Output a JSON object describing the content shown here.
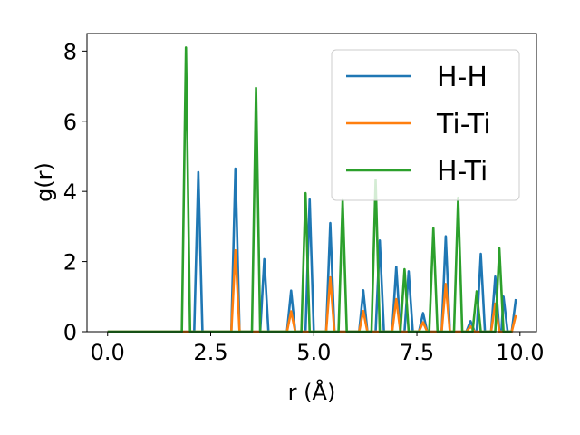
{
  "chart_data": {
    "type": "line",
    "xlabel": "r (Å)",
    "ylabel": "g(r)",
    "xlim": [
      -0.5,
      10.4
    ],
    "ylim": [
      0,
      8.5
    ],
    "xticks": [
      "0.0",
      "2.5",
      "5.0",
      "7.5",
      "10.0"
    ],
    "yticks": [
      "0",
      "2",
      "4",
      "6",
      "8"
    ],
    "grid": false,
    "legend_position": "top-right",
    "series": [
      {
        "name": "H-H",
        "color": "#1f77b4",
        "points": [
          [
            0.0,
            0
          ],
          [
            2.1,
            0
          ],
          [
            2.2,
            4.55
          ],
          [
            2.3,
            0
          ],
          [
            3.0,
            0
          ],
          [
            3.1,
            4.65
          ],
          [
            3.2,
            0
          ],
          [
            3.7,
            0
          ],
          [
            3.8,
            2.07
          ],
          [
            3.9,
            0
          ],
          [
            4.35,
            0
          ],
          [
            4.45,
            1.17
          ],
          [
            4.55,
            0
          ],
          [
            4.8,
            0
          ],
          [
            4.9,
            3.77
          ],
          [
            5.0,
            0
          ],
          [
            5.3,
            0
          ],
          [
            5.4,
            3.1
          ],
          [
            5.5,
            0
          ],
          [
            6.1,
            0
          ],
          [
            6.2,
            1.18
          ],
          [
            6.3,
            0
          ],
          [
            6.5,
            0
          ],
          [
            6.6,
            2.6
          ],
          [
            6.7,
            0
          ],
          [
            6.9,
            0
          ],
          [
            7.0,
            1.85
          ],
          [
            7.1,
            0
          ],
          [
            7.2,
            0
          ],
          [
            7.3,
            1.72
          ],
          [
            7.4,
            0
          ],
          [
            7.55,
            0
          ],
          [
            7.65,
            0.53
          ],
          [
            7.75,
            0
          ],
          [
            8.1,
            0
          ],
          [
            8.2,
            2.72
          ],
          [
            8.3,
            0
          ],
          [
            8.7,
            0
          ],
          [
            8.8,
            0.3
          ],
          [
            8.9,
            0
          ],
          [
            8.95,
            0
          ],
          [
            9.05,
            2.22
          ],
          [
            9.15,
            0
          ],
          [
            9.3,
            0
          ],
          [
            9.4,
            1.57
          ],
          [
            9.5,
            0
          ],
          [
            9.55,
            0
          ],
          [
            9.6,
            1.0
          ],
          [
            9.7,
            0
          ],
          [
            9.8,
            0
          ],
          [
            9.9,
            0.93
          ]
        ]
      },
      {
        "name": "Ti-Ti",
        "color": "#ff7f0e",
        "points": [
          [
            0.0,
            0
          ],
          [
            3.0,
            0
          ],
          [
            3.1,
            2.32
          ],
          [
            3.2,
            0
          ],
          [
            4.35,
            0
          ],
          [
            4.45,
            0.58
          ],
          [
            4.55,
            0
          ],
          [
            5.3,
            0
          ],
          [
            5.4,
            1.55
          ],
          [
            5.5,
            0
          ],
          [
            6.1,
            0
          ],
          [
            6.2,
            0.59
          ],
          [
            6.3,
            0
          ],
          [
            6.9,
            0
          ],
          [
            7.0,
            0.93
          ],
          [
            7.1,
            0
          ],
          [
            7.55,
            0
          ],
          [
            7.65,
            0.27
          ],
          [
            7.75,
            0
          ],
          [
            8.1,
            0
          ],
          [
            8.2,
            1.36
          ],
          [
            8.3,
            0
          ],
          [
            8.7,
            0
          ],
          [
            8.8,
            0.15
          ],
          [
            8.9,
            0
          ],
          [
            9.3,
            0
          ],
          [
            9.4,
            0.8
          ],
          [
            9.5,
            0
          ],
          [
            9.8,
            0
          ],
          [
            9.9,
            0.47
          ]
        ]
      },
      {
        "name": "H-Ti",
        "color": "#2ca02c",
        "points": [
          [
            0.0,
            0
          ],
          [
            1.8,
            0
          ],
          [
            1.9,
            8.1
          ],
          [
            2.0,
            0
          ],
          [
            3.5,
            0
          ],
          [
            3.6,
            6.95
          ],
          [
            3.7,
            0
          ],
          [
            4.7,
            0
          ],
          [
            4.8,
            3.95
          ],
          [
            4.9,
            0
          ],
          [
            5.6,
            0
          ],
          [
            5.7,
            3.75
          ],
          [
            5.8,
            0
          ],
          [
            6.4,
            0
          ],
          [
            6.5,
            4.33
          ],
          [
            6.6,
            0
          ],
          [
            7.1,
            0
          ],
          [
            7.2,
            1.78
          ],
          [
            7.3,
            0
          ],
          [
            7.8,
            0
          ],
          [
            7.9,
            2.95
          ],
          [
            8.0,
            0
          ],
          [
            8.4,
            0
          ],
          [
            8.5,
            3.82
          ],
          [
            8.6,
            0
          ],
          [
            8.85,
            0
          ],
          [
            8.95,
            1.15
          ],
          [
            9.05,
            0
          ],
          [
            9.4,
            0
          ],
          [
            9.5,
            2.38
          ],
          [
            9.6,
            0
          ],
          [
            9.7,
            0
          ],
          [
            9.8,
            0
          ]
        ]
      }
    ]
  }
}
